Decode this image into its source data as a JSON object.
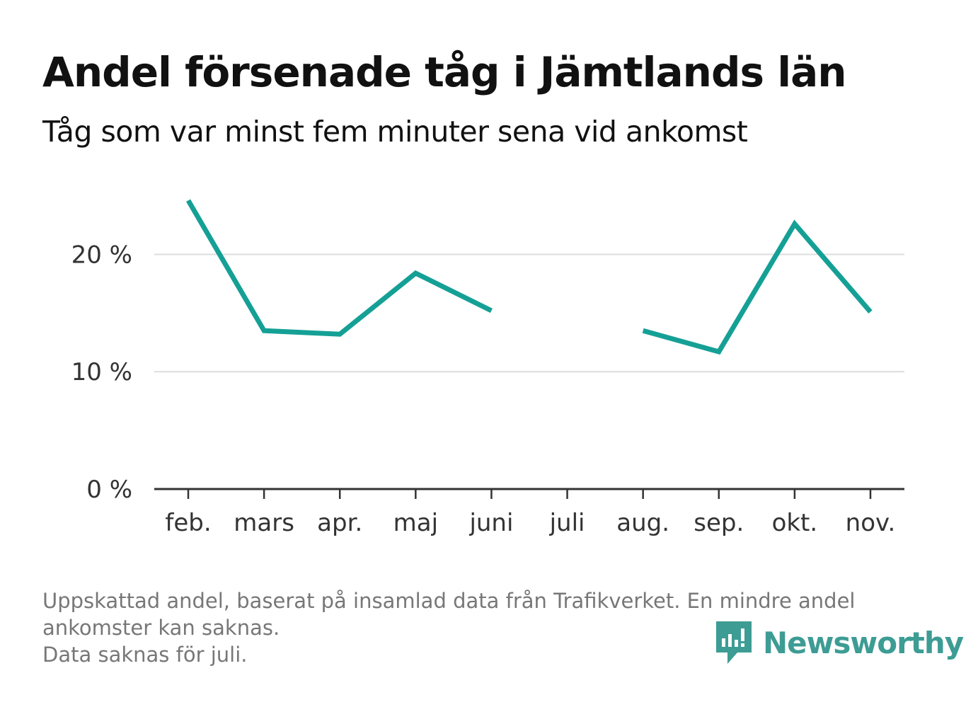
{
  "title": "Andel försenade tåg i Jämtlands län",
  "subtitle": "Tåg som var minst fem minuter sena vid ankomst",
  "chart_data": {
    "type": "line",
    "categories": [
      "feb.",
      "mars",
      "apr.",
      "maj",
      "juni",
      "juli",
      "aug.",
      "sep.",
      "okt.",
      "nov."
    ],
    "series": [
      {
        "values": [
          24.6,
          13.5,
          13.2,
          18.4,
          15.2,
          null,
          13.5,
          11.7,
          22.6,
          15.1
        ]
      }
    ],
    "y_ticks": [
      0,
      10,
      20
    ],
    "y_tick_labels": [
      "0 %",
      "10 %",
      "20 %"
    ],
    "ylim": [
      0,
      26
    ],
    "grid": true,
    "colors": {
      "line": "#15a096",
      "grid": "#dddddd",
      "axis": "#333333"
    }
  },
  "footnote": {
    "lines": [
      "Uppskattad andel, baserat på insamlad data från Trafikverket. En mindre andel",
      "ankomster kan saknas.",
      "Data saknas för juli."
    ]
  },
  "logo": {
    "text": "Newsworthy",
    "color": "#3d9c94",
    "icon": "newsworthy-logo-icon"
  }
}
